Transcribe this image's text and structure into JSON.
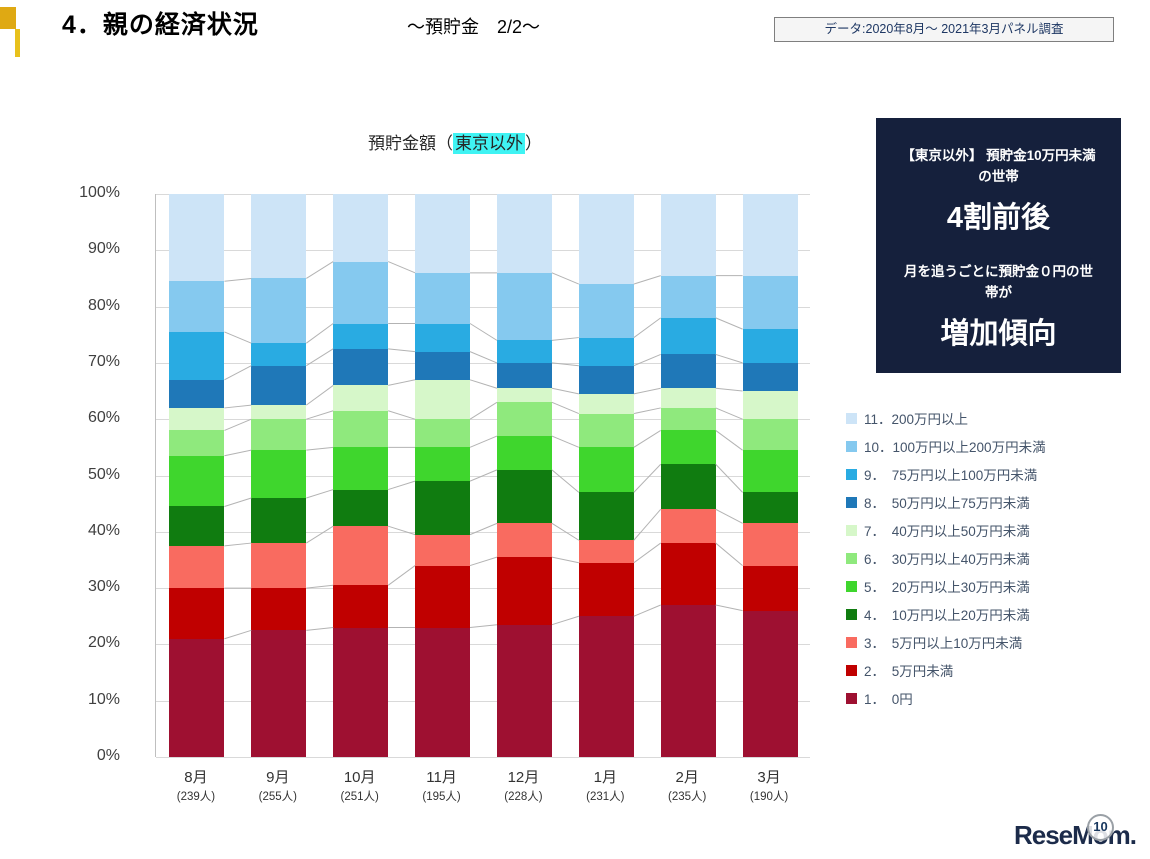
{
  "header": {
    "title": "4．親の経済状況",
    "subtitle": "～預貯金　2/2～",
    "data_note": "データ:2020年8月～ 2021年3月パネル調査"
  },
  "chart_title": {
    "prefix": "預貯金額（",
    "highlight": "東京以外",
    "suffix": "）",
    "highlight_color": "#3ff3f3"
  },
  "callout": {
    "line1": "【東京以外】 預貯金10万円未満の世帯",
    "big1": "4割前後",
    "line2": "月を追うごとに預貯金０円の世帯が",
    "big2": "増加傾向",
    "bg_color": "#15203c"
  },
  "footer": {
    "brand": "ReseMom.",
    "page": "10"
  },
  "chart_data": {
    "type": "bar",
    "subtype": "stacked-100-percent",
    "title": "預貯金額（東京以外）",
    "grid": true,
    "legend_position": "right",
    "ylim": [
      0,
      100
    ],
    "y_ticks": [
      "100%",
      "90%",
      "80%",
      "70%",
      "60%",
      "50%",
      "40%",
      "30%",
      "20%",
      "10%",
      "0%"
    ],
    "categories": [
      "8月",
      "9月",
      "10月",
      "11月",
      "12月",
      "1月",
      "2月",
      "3月"
    ],
    "counts": [
      "(239人)",
      "(255人)",
      "(251人)",
      "(195人)",
      "(228人)",
      "(231人)",
      "(235人)",
      "(190人)"
    ],
    "series": [
      {
        "name": "1．　0円",
        "color": "#9e1031",
        "values": [
          21,
          22.5,
          23,
          23,
          23.5,
          25,
          27,
          26
        ]
      },
      {
        "name": "2．　5万円未満",
        "color": "#c00000",
        "values": [
          9,
          7.5,
          7.5,
          11,
          12,
          9.5,
          11,
          8
        ]
      },
      {
        "name": "3．　5万円以上10万円未満",
        "color": "#f96b60",
        "values": [
          7.5,
          8,
          10.5,
          5.5,
          6,
          4,
          6,
          7.5
        ]
      },
      {
        "name": "4．　10万円以上20万円未満",
        "color": "#107c10",
        "values": [
          7,
          8,
          6.5,
          9.5,
          9.5,
          8.5,
          8,
          5.5
        ]
      },
      {
        "name": "5．　20万円以上30万円未満",
        "color": "#3fd62d",
        "values": [
          9,
          8.5,
          7.5,
          6,
          6,
          8,
          6,
          7.5
        ]
      },
      {
        "name": "6．　30万円以上40万円未満",
        "color": "#8fe97d",
        "values": [
          4.5,
          5.5,
          6.5,
          5,
          6,
          6,
          4,
          5.5
        ]
      },
      {
        "name": "7．　40万円以上50万円未満",
        "color": "#d6f7c9",
        "values": [
          4,
          2.5,
          4.5,
          7,
          2.5,
          3.5,
          3.5,
          5
        ]
      },
      {
        "name": "8．　50万円以上75万円未満",
        "color": "#1f78b8",
        "values": [
          5,
          7,
          6.5,
          5,
          4.5,
          5,
          6,
          5
        ]
      },
      {
        "name": "9．　75万円以上100万円未満",
        "color": "#29abe2",
        "values": [
          8.5,
          4,
          4.5,
          5,
          4,
          5,
          6.5,
          6
        ]
      },
      {
        "name": "10．100万円以上200万円未満",
        "color": "#85c9ef",
        "values": [
          9,
          11.5,
          11,
          9,
          12,
          9.5,
          7.5,
          9.5
        ]
      },
      {
        "name": "11．200万円以上",
        "color": "#cde4f7",
        "values": [
          15.5,
          15,
          12,
          14,
          14,
          16,
          14.5,
          14.5
        ]
      }
    ]
  }
}
